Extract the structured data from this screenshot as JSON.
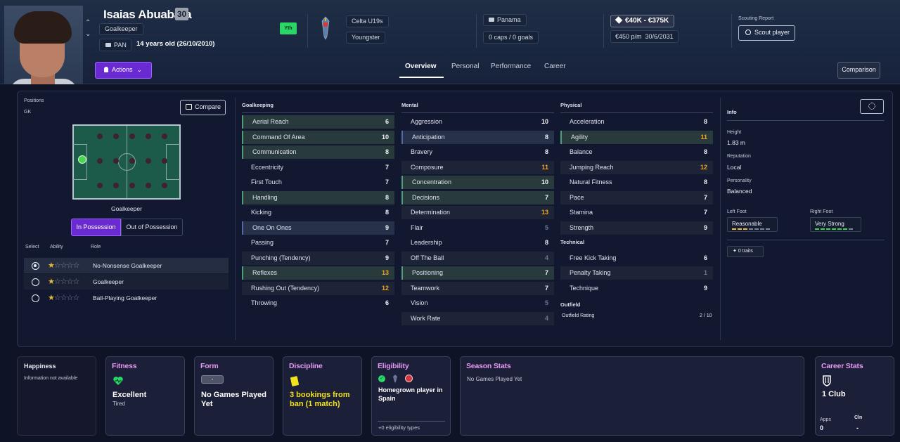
{
  "player": {
    "name": "Isaias Abuabara",
    "ca_badge": "30",
    "position": "Goalkeeper",
    "nation": "PAN",
    "age": "14 years old (26/10/2010)",
    "youth_badge": "Yth",
    "club": "Celta U19s",
    "club_status": "Youngster",
    "national_team": "Panama",
    "caps": "0 caps / 0 goals",
    "value": "€40K - €375K",
    "wage": "€450 p/m",
    "contract_end": "30/6/2031"
  },
  "header": {
    "actions_label": "Actions",
    "scouting_label": "Scouting Report",
    "scout_button": "Scout player",
    "comparison_button": "Comparison",
    "tabs": [
      "Overview",
      "Personal",
      "Performance",
      "Career"
    ]
  },
  "positions": {
    "label": "Positions",
    "value": "GK",
    "compare_button": "Compare",
    "pitch_caption": "Goalkeeper",
    "in_possession": "In Possession",
    "out_of_possession": "Out of Possession",
    "table_headers": [
      "Select",
      "Ability",
      "Role"
    ],
    "roles": [
      {
        "name": "No-Nonsense Goalkeeper",
        "selected": true,
        "stars": 0.5
      },
      {
        "name": "Goalkeeper",
        "selected": false,
        "stars": 0.5
      },
      {
        "name": "Ball-Playing Goalkeeper",
        "selected": false,
        "stars": 0.5
      }
    ]
  },
  "attributes": {
    "goalkeeping": {
      "title": "Goalkeeping",
      "items": [
        {
          "name": "Aerial Reach",
          "value": "6"
        },
        {
          "name": "Command Of Area",
          "value": "10"
        },
        {
          "name": "Communication",
          "value": "8"
        },
        {
          "name": "Eccentricity",
          "value": "7"
        },
        {
          "name": "First Touch",
          "value": "7"
        },
        {
          "name": "Handling",
          "value": "8"
        },
        {
          "name": "Kicking",
          "value": "8"
        },
        {
          "name": "One On Ones",
          "value": "9"
        },
        {
          "name": "Passing",
          "value": "7"
        },
        {
          "name": "Punching (Tendency)",
          "value": "9"
        },
        {
          "name": "Reflexes",
          "value": "13"
        },
        {
          "name": "Rushing Out (Tendency)",
          "value": "12"
        },
        {
          "name": "Throwing",
          "value": "6"
        }
      ]
    },
    "mental": {
      "title": "Mental",
      "items": [
        {
          "name": "Aggression",
          "value": "10"
        },
        {
          "name": "Anticipation",
          "value": "8"
        },
        {
          "name": "Bravery",
          "value": "8"
        },
        {
          "name": "Composure",
          "value": "11"
        },
        {
          "name": "Concentration",
          "value": "10"
        },
        {
          "name": "Decisions",
          "value": "7"
        },
        {
          "name": "Determination",
          "value": "13"
        },
        {
          "name": "Flair",
          "value": "5"
        },
        {
          "name": "Leadership",
          "value": "8"
        },
        {
          "name": "Off The Ball",
          "value": "4"
        },
        {
          "name": "Positioning",
          "value": "7"
        },
        {
          "name": "Teamwork",
          "value": "7"
        },
        {
          "name": "Vision",
          "value": "5"
        },
        {
          "name": "Work Rate",
          "value": "4"
        }
      ]
    },
    "physical": {
      "title": "Physical",
      "items": [
        {
          "name": "Acceleration",
          "value": "8"
        },
        {
          "name": "Agility",
          "value": "11"
        },
        {
          "name": "Balance",
          "value": "8"
        },
        {
          "name": "Jumping Reach",
          "value": "12"
        },
        {
          "name": "Natural Fitness",
          "value": "8"
        },
        {
          "name": "Pace",
          "value": "7"
        },
        {
          "name": "Stamina",
          "value": "7"
        },
        {
          "name": "Strength",
          "value": "9"
        }
      ]
    },
    "technical": {
      "title": "Technical",
      "items": [
        {
          "name": "Free Kick Taking",
          "value": "6"
        },
        {
          "name": "Penalty Taking",
          "value": "1"
        },
        {
          "name": "Technique",
          "value": "9"
        }
      ]
    },
    "outfield": {
      "title": "Outfield",
      "rating_label": "Outfield Rating",
      "rating_value": "2 / 10"
    }
  },
  "info": {
    "title": "Info",
    "height_label": "Height",
    "height": "1.83 m",
    "reputation_label": "Reputation",
    "reputation": "Local",
    "personality_label": "Personality",
    "personality": "Balanced",
    "left_foot_label": "Left Foot",
    "left_foot": "Reasonable",
    "left_foot_level": 3,
    "right_foot_label": "Right Foot",
    "right_foot": "Very Strong",
    "right_foot_level": 6,
    "traits": "0 traits"
  },
  "cards": {
    "happiness": {
      "title": "Happiness",
      "text": "Information not available"
    },
    "fitness": {
      "title": "Fitness",
      "main": "Excellent",
      "sub": "Tired"
    },
    "form": {
      "title": "Form",
      "chip": "-",
      "main": "No Games Played Yet"
    },
    "discipline": {
      "title": "Discipline",
      "main": "3 bookings from ban (1 match)"
    },
    "eligibility": {
      "title": "Eligibility",
      "main": "Homegrown player in Spain",
      "footer": "+0 eligibility types"
    },
    "season": {
      "title": "Season Stats",
      "text": "No Games Played Yet"
    },
    "career": {
      "title": "Career Stats",
      "main": "1 Club",
      "apps_label": "Apps",
      "apps": "0",
      "cln_label": "Cln",
      "cln": "-"
    }
  },
  "colors": {
    "accent": "#6a2ad1",
    "highlight_value": "#f2a51c",
    "card_title": "#e59af2",
    "good": "#2bd566"
  }
}
